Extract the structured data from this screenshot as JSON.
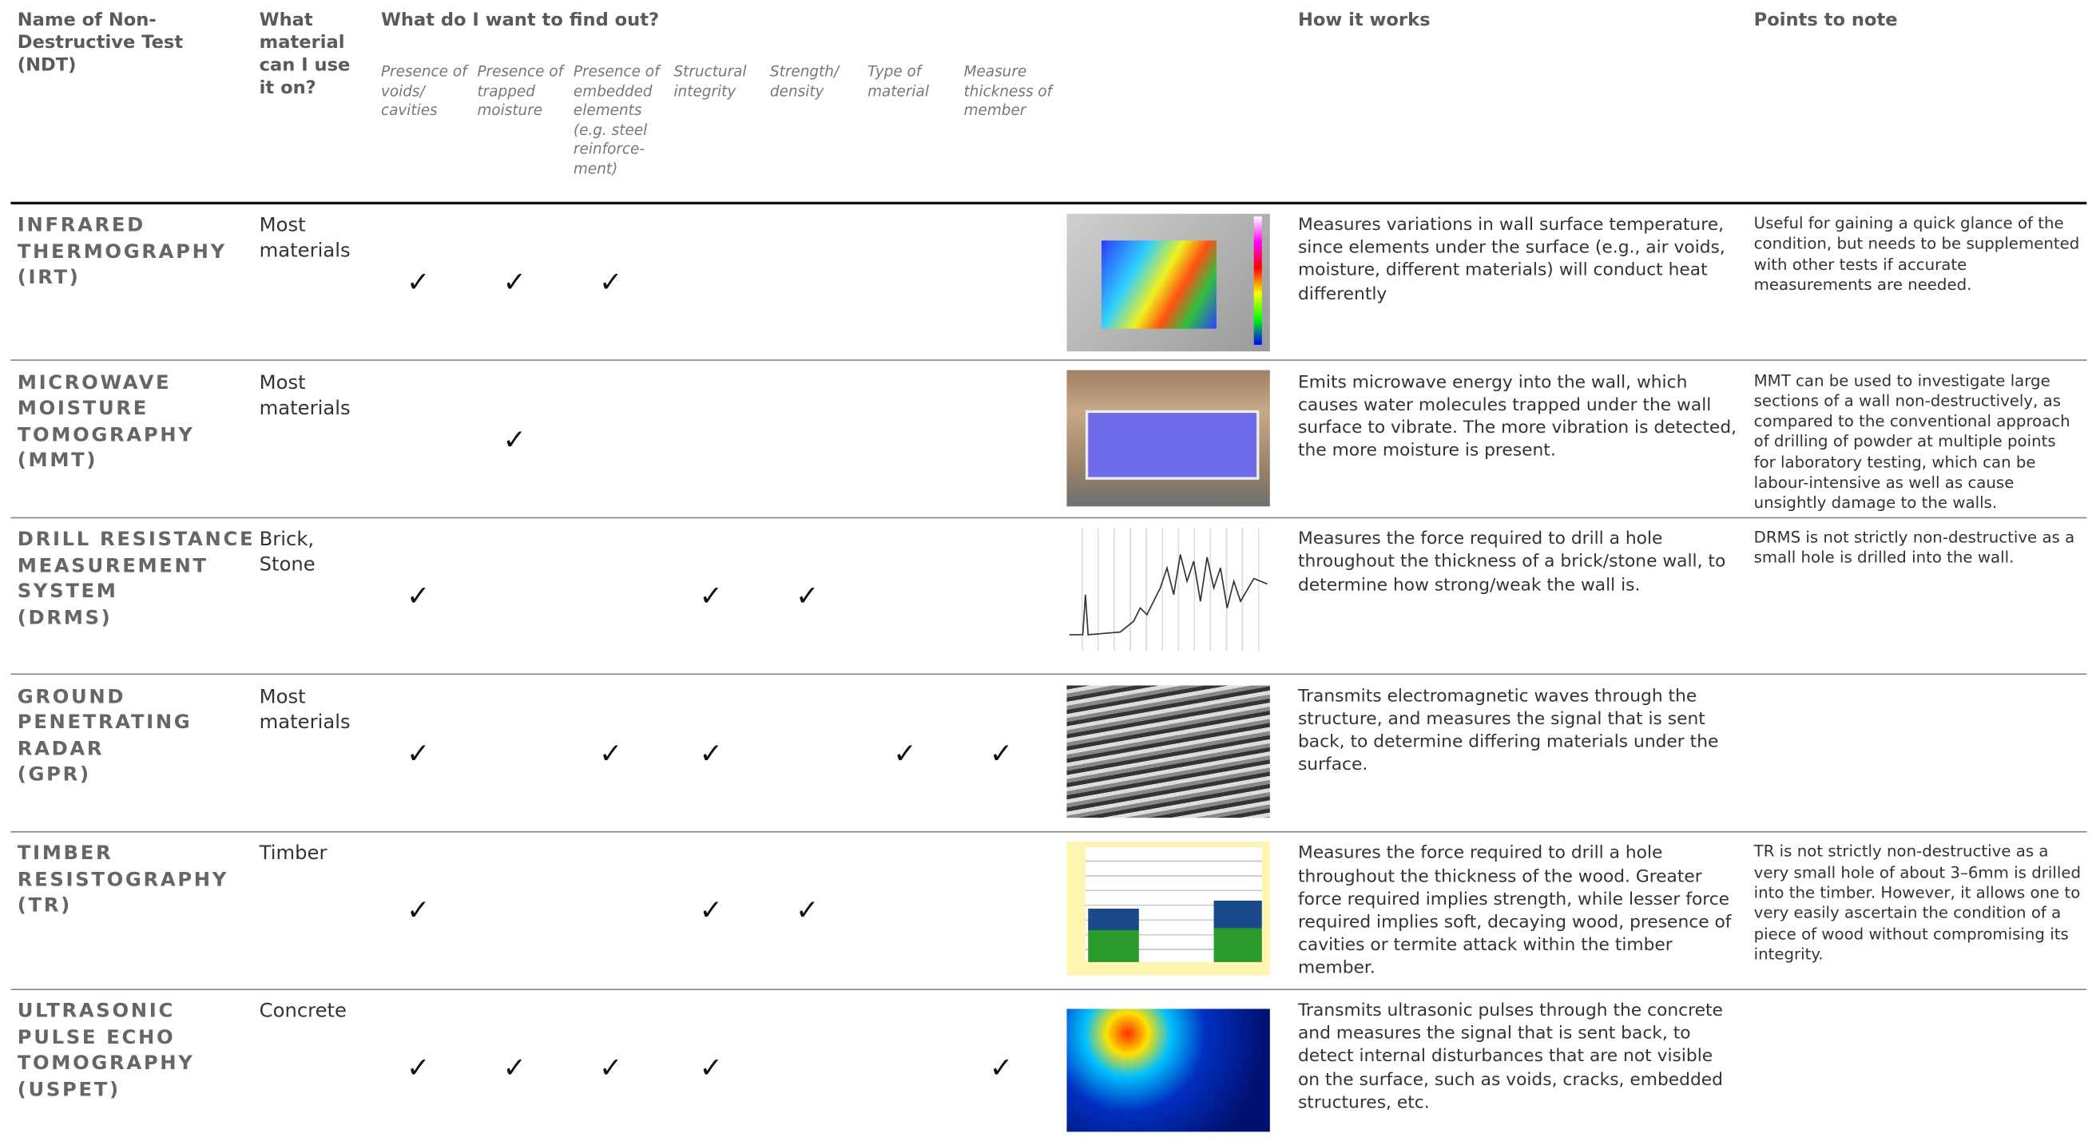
{
  "header": {
    "name": "Name of Non-Destructive Test (NDT)",
    "material": "What material can I use it on?",
    "find_out": "What do I want to find out?",
    "subcolumns": [
      "Presence of voids/ cavities",
      "Presence of trapped moisture",
      "Presence of embedded elements (e.g. steel reinforce-ment)",
      "Structural integrity",
      "Strength/ density",
      "Type of material",
      "Measure thickness of member"
    ],
    "how": "How it works",
    "points": "Points to note"
  },
  "table": {
    "rows": [
      {
        "name_lines": [
          "INFRARED",
          "THERMOGRAPHY",
          "(IRT)"
        ],
        "material": "Most materials",
        "checks": [
          "✓",
          "✓",
          "✓",
          null,
          null,
          null,
          null
        ],
        "how": "Measures variations in wall surface temperature, since elements under the surface (e.g., air voids, moisture, different materials) will conduct heat differently",
        "points": "Useful for gaining a quick glance of the condition, but needs to be supplemented with other tests if accurate measurements are needed."
      },
      {
        "name_lines": [
          "MICROWAVE",
          "MOISTURE",
          "TOMOGRAPHY",
          "(MMT)"
        ],
        "material": "Most materials",
        "checks": [
          null,
          "✓",
          null,
          null,
          null,
          null,
          null
        ],
        "how": "Emits microwave energy into the wall, which causes water molecules trapped under the wall surface to vibrate. The more vibration is detected, the more moisture is present.",
        "points": "MMT can be used to investigate large sections of a wall non-destructively, as compared to the conventional approach of drilling of powder at multiple points for laboratory testing, which can be labour-intensive as well as cause unsightly damage to the walls."
      },
      {
        "name_lines": [
          "DRILL RESISTANCE",
          "MEASUREMENT",
          "SYSTEM",
          "(DRMS)"
        ],
        "material": "Brick, Stone",
        "checks": [
          "✓",
          null,
          null,
          "✓",
          "✓",
          null,
          null
        ],
        "how": "Measures the force required to drill a hole throughout the thickness of a brick/stone wall, to determine how strong/weak the wall is.",
        "points": "DRMS is not strictly non-destructive as a small hole is drilled into the wall."
      },
      {
        "name_lines": [
          "GROUND",
          "PENETRATING",
          "RADAR",
          "(GPR)"
        ],
        "material": "Most materials",
        "checks": [
          "✓",
          null,
          "✓",
          "✓",
          null,
          "✓",
          "✓"
        ],
        "how": "Transmits electromagnetic waves through the structure, and measures the signal that is sent back, to determine differing materials under the surface.",
        "points": null
      },
      {
        "name_lines": [
          "TIMBER",
          "RESISTOGRAPHY",
          "(TR)"
        ],
        "material": "Timber",
        "checks": [
          "✓",
          null,
          null,
          "✓",
          "✓",
          null,
          null
        ],
        "how": "Measures the force required to drill a hole throughout the thickness of the wood. Greater force required implies strength, while lesser force required implies soft, decaying wood, presence of cavities or termite attack within the timber member.",
        "points": "TR is not strictly non-destructive as a very small hole of about 3–6mm is drilled into the timber. However, it allows one to very easily ascertain the condition of a piece of wood without compromising its integrity."
      },
      {
        "name_lines": [
          "ULTRASONIC",
          "PULSE ECHO",
          "TOMOGRAPHY",
          "(USPET)"
        ],
        "material": "Concrete",
        "checks": [
          "✓",
          "✓",
          "✓",
          "✓",
          null,
          null,
          "✓"
        ],
        "how": "Transmits ultrasonic pulses through the concrete and measures the signal that is sent back, to detect internal disturbances that are not visible on the surface, such as voids, cracks, embedded structures, etc.",
        "points": null
      }
    ]
  }
}
